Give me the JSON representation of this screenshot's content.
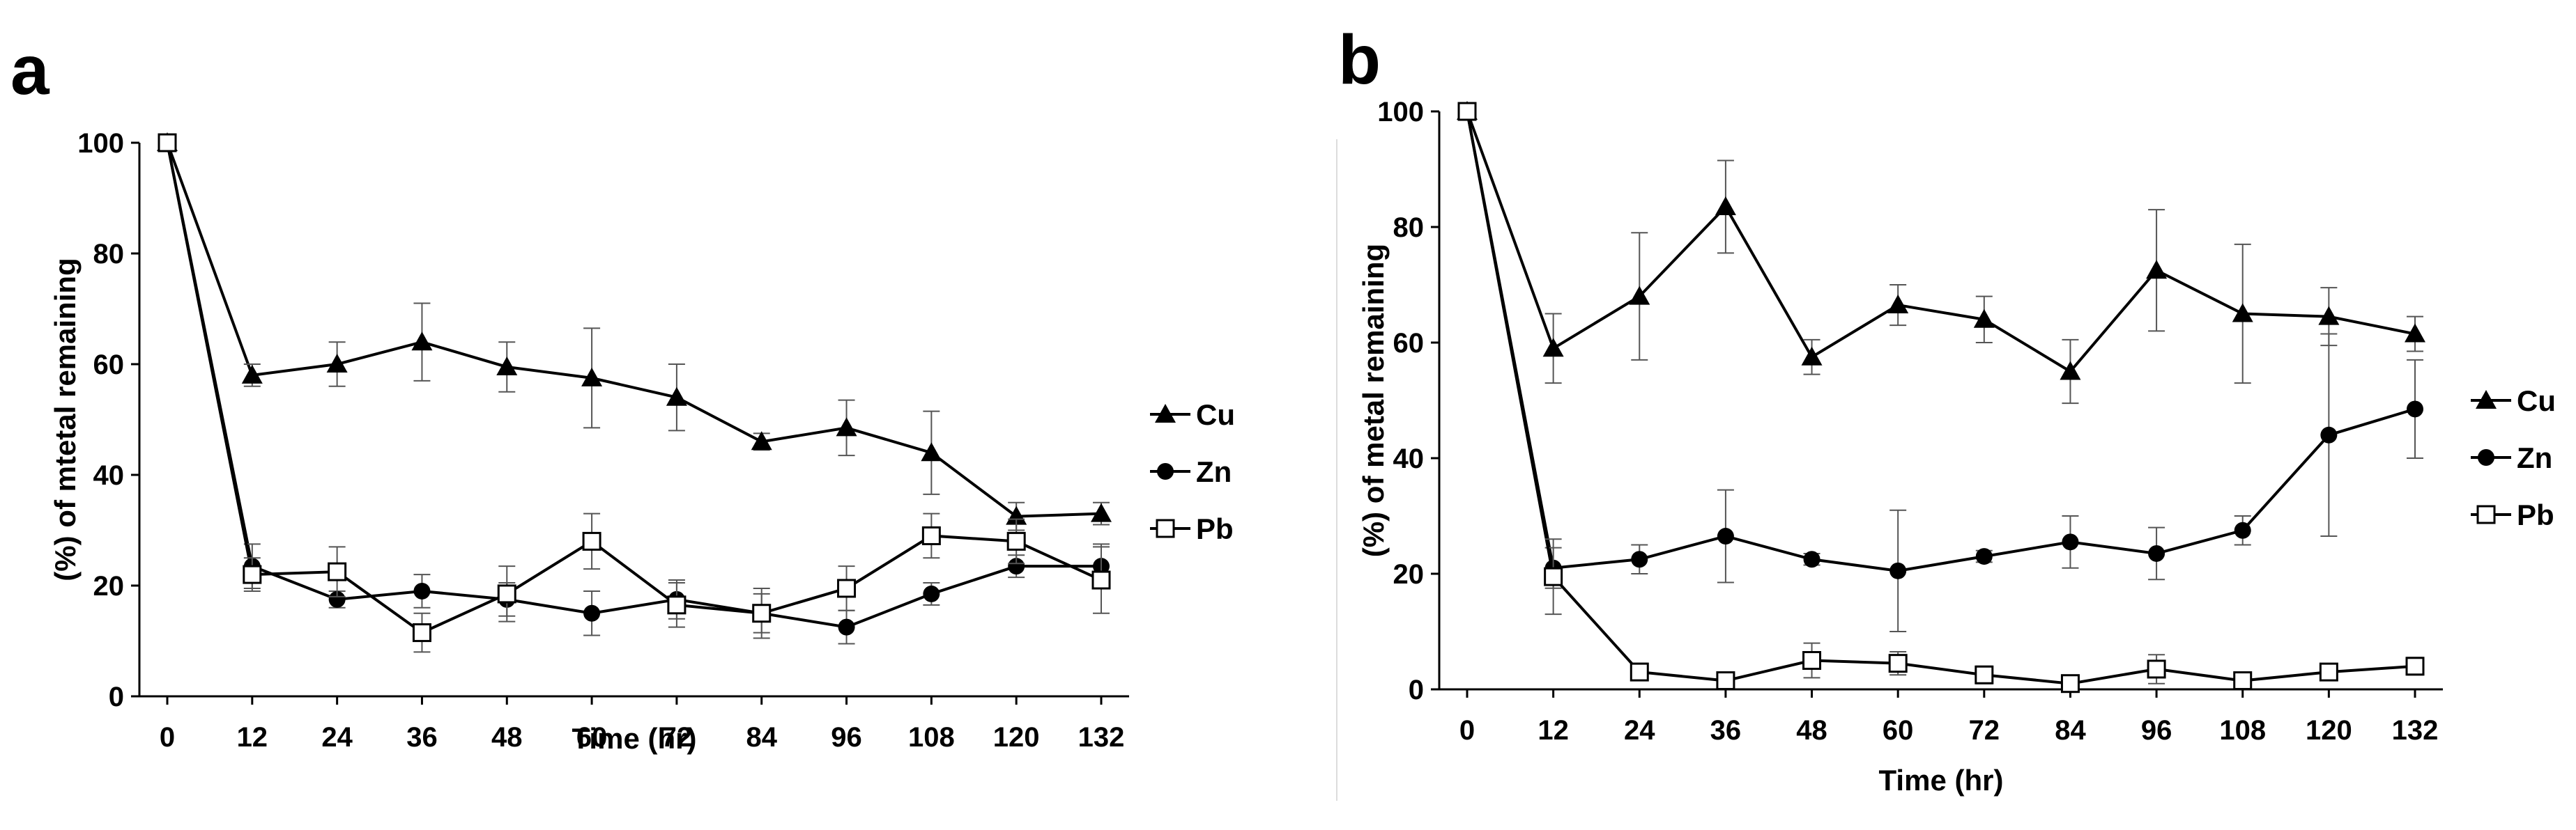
{
  "chart_data": [
    {
      "panel": "a",
      "type": "line",
      "categories": [
        "0",
        "12",
        "24",
        "36",
        "48",
        "60",
        "72",
        "84",
        "96",
        "108",
        "120",
        "132"
      ],
      "xlabel": "Time (hr)",
      "ylabel": "(%) of mtetal remaining",
      "ylim": [
        0,
        100
      ],
      "yticks": [
        "0",
        "20",
        "40",
        "60",
        "80",
        "100"
      ],
      "legend_position": "right",
      "series": [
        {
          "name": "Cu",
          "marker": "triangle",
          "values": [
            100,
            58,
            60,
            64,
            59.5,
            57.5,
            54,
            46,
            48.5,
            44,
            32.5,
            33
          ],
          "errors": [
            0,
            2,
            4,
            7,
            4.5,
            9,
            6,
            1.5,
            5,
            7.5,
            2.5,
            2
          ]
        },
        {
          "name": "Zn",
          "marker": "circle",
          "values": [
            100,
            23.5,
            17.5,
            19,
            17.5,
            15,
            17.5,
            15,
            12.5,
            18.5,
            23.5,
            23.5
          ],
          "errors": [
            0,
            4,
            1.5,
            3,
            3,
            4,
            3.5,
            3.5,
            3,
            2,
            2,
            4
          ]
        },
        {
          "name": "Pb",
          "marker": "square",
          "values": [
            100,
            22,
            22.5,
            11.5,
            18.5,
            28,
            16.5,
            15,
            19.5,
            29,
            28,
            21
          ],
          "errors": [
            0,
            3,
            4.5,
            3.5,
            5,
            5,
            4,
            4.5,
            4,
            4,
            4,
            6
          ]
        }
      ]
    },
    {
      "panel": "b",
      "type": "line",
      "categories": [
        "0",
        "12",
        "24",
        "36",
        "48",
        "60",
        "72",
        "84",
        "96",
        "108",
        "120",
        "132"
      ],
      "xlabel": "Time (hr)",
      "ylabel": "(%) of metal remaining",
      "ylim": [
        0,
        100
      ],
      "yticks": [
        "0",
        "20",
        "40",
        "60",
        "80",
        "100"
      ],
      "legend_position": "right",
      "series": [
        {
          "name": "Cu",
          "marker": "triangle",
          "values": [
            100,
            59,
            68,
            83.5,
            57.5,
            66.5,
            64,
            55,
            72.5,
            65,
            64.5,
            61.5
          ],
          "errors": [
            0,
            6,
            11,
            8,
            3,
            3.5,
            4,
            5.5,
            10.5,
            12,
            5,
            3
          ]
        },
        {
          "name": "Zn",
          "marker": "circle",
          "values": [
            100,
            21,
            22.5,
            26.5,
            22.5,
            20.5,
            23,
            25.5,
            23.5,
            27.5,
            44,
            48.5
          ],
          "errors": [
            0,
            3.5,
            2.5,
            8,
            1,
            10.5,
            1,
            4.5,
            4.5,
            2.5,
            17.5,
            8.5
          ]
        },
        {
          "name": "Pb",
          "marker": "square",
          "values": [
            100,
            19.5,
            3,
            1.5,
            5,
            4.5,
            2.5,
            1,
            3.5,
            1.5,
            3,
            4
          ],
          "errors": [
            0,
            6.5,
            1.5,
            1,
            3,
            2,
            1.5,
            0.5,
            2.5,
            0.5,
            1,
            1.5
          ]
        }
      ]
    }
  ]
}
